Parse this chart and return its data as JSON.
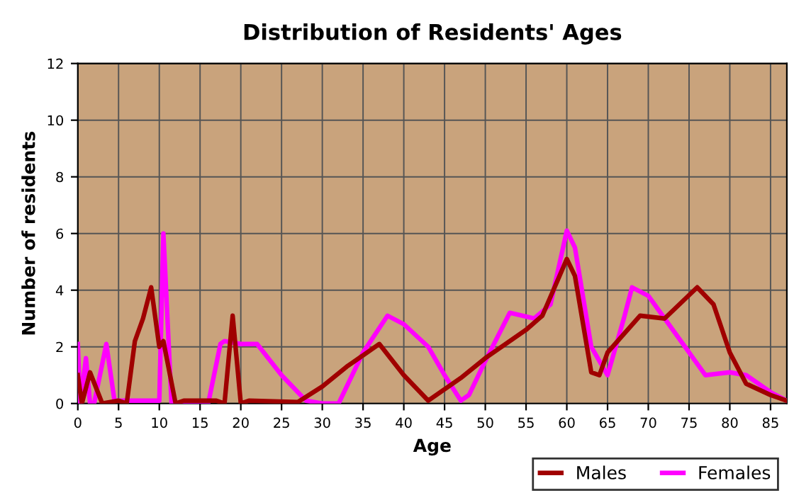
{
  "chart_data": {
    "type": "line",
    "title": "Distribution of Residents' Ages",
    "xlabel": "Age",
    "ylabel": "Number of residents",
    "xlim": [
      0,
      87
    ],
    "xticks": [
      0,
      5,
      10,
      15,
      20,
      25,
      30,
      35,
      40,
      45,
      50,
      55,
      60,
      65,
      70,
      75,
      80,
      85
    ],
    "ylim": [
      0,
      12
    ],
    "yticks": [
      0,
      2,
      4,
      6,
      8,
      10,
      12
    ],
    "grid": true,
    "legend": "bottom right",
    "marker": "none",
    "line_style": "solid",
    "series": [
      {
        "name": "Males",
        "color": "#a00000",
        "x": [
          0,
          0.5,
          1.5,
          3,
          5,
          6,
          7,
          8,
          9,
          10,
          10.5,
          12,
          13,
          17,
          18,
          19,
          20,
          21,
          27,
          30,
          33,
          37,
          40,
          43,
          47,
          50,
          55,
          57,
          60,
          61,
          63,
          64,
          65,
          69,
          72,
          76,
          78,
          80,
          82,
          85,
          87
        ],
        "values": [
          1,
          0,
          1.1,
          0,
          0.1,
          0,
          2.2,
          3,
          4.1,
          2,
          2.2,
          0,
          0.1,
          0.1,
          0,
          3.1,
          0,
          0.1,
          0.05,
          0.6,
          1.3,
          2.1,
          1,
          0.1,
          0.9,
          1.6,
          2.6,
          3.1,
          5.1,
          4.5,
          1.1,
          1,
          1.8,
          3.1,
          3,
          4.1,
          3.5,
          1.8,
          0.7,
          0.3,
          0.1
        ]
      },
      {
        "name": "Females",
        "color": "#ff00ff",
        "x": [
          0,
          0.3,
          1,
          1.5,
          2,
          3.5,
          4.5,
          7,
          10,
          10.5,
          11.5,
          16,
          17.5,
          18,
          20,
          22,
          25,
          28,
          30,
          32,
          35,
          38,
          40,
          43,
          45,
          47,
          48,
          50,
          53,
          56,
          58,
          60,
          61,
          63,
          65,
          67,
          68,
          70,
          72,
          75,
          77,
          80,
          82,
          85,
          87
        ],
        "values": [
          2.1,
          0,
          1.6,
          0,
          0,
          2.1,
          0.1,
          0.1,
          0.1,
          6,
          0,
          0,
          2.1,
          2.2,
          2.1,
          2.1,
          1,
          0.1,
          0,
          0,
          1.8,
          3.1,
          2.8,
          2,
          1,
          0.1,
          0.3,
          1.5,
          3.2,
          3,
          3.5,
          6.1,
          5.5,
          2,
          1,
          3,
          4.1,
          3.8,
          3,
          1.8,
          1,
          1.1,
          1,
          0.4,
          0.1
        ]
      }
    ]
  }
}
